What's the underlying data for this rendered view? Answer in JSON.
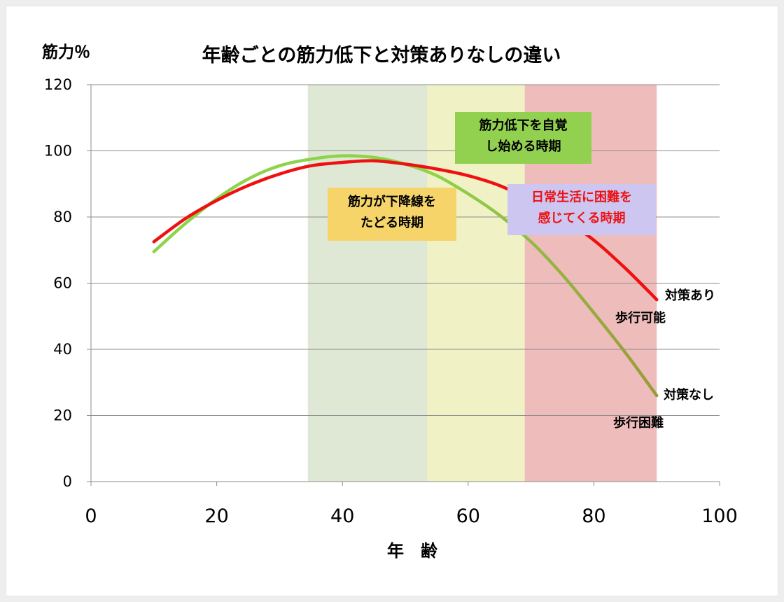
{
  "chart_data": {
    "type": "line",
    "title": "年齢ごとの筋力低下と対策ありなしの違い",
    "ylabel": "筋力％",
    "xlabel": "年　齢",
    "xlim": [
      0,
      100
    ],
    "ylim": [
      0,
      120
    ],
    "xticks": [
      "0",
      "20",
      "40",
      "60",
      "80",
      "100"
    ],
    "yticks": [
      "0",
      "20",
      "40",
      "60",
      "80",
      "100",
      "120"
    ],
    "grid": "horizontal",
    "series": [
      {
        "name": "対策あり",
        "color": "#ee1111",
        "x": [
          10,
          15,
          20,
          25,
          30,
          35,
          40,
          45,
          50,
          55,
          60,
          65,
          70,
          75,
          80,
          85,
          90
        ],
        "y": [
          72.5,
          79.5,
          85,
          89.5,
          93,
          95.5,
          96.5,
          97,
          96,
          94.5,
          92.5,
          89.5,
          85,
          79.5,
          73,
          64.5,
          55
        ]
      },
      {
        "name": "対策なし",
        "color_start": "#8ed44a",
        "color_end": "#9a9a3a",
        "x": [
          10,
          15,
          20,
          25,
          30,
          35,
          40,
          45,
          50,
          55,
          60,
          65,
          70,
          75,
          80,
          85,
          90
        ],
        "y": [
          69.5,
          78,
          85.5,
          91.5,
          95.5,
          97.5,
          98.5,
          98,
          96,
          92.5,
          87,
          80.5,
          72.5,
          62.5,
          51,
          39,
          26
        ]
      }
    ],
    "bands": [
      {
        "x0": 34.5,
        "x1": 53.5,
        "color": "#dfe8d5"
      },
      {
        "x0": 53.5,
        "x1": 69,
        "color": "#f1f1c6"
      },
      {
        "x0": 69,
        "x1": 90,
        "color": "#efbcbc"
      }
    ],
    "annotations": [
      {
        "id": "awareness",
        "lines": [
          "筋力低下を自覚",
          "し始める時期"
        ],
        "bg": "#92d050",
        "color": "#000000"
      },
      {
        "id": "decline",
        "lines": [
          "筋力が下降線を",
          "たどる時期"
        ],
        "bg": "#f6d46a",
        "color": "#000000"
      },
      {
        "id": "difficulty",
        "lines": [
          "日常生活に困難を",
          "感じてくる時期"
        ],
        "bg": "#ccc6f1",
        "color": "#ee1111"
      }
    ],
    "end_labels": {
      "with": "対策あり",
      "walk_ok": "歩行可能",
      "without": "対策なし",
      "walk_hard": "歩行困難"
    }
  }
}
